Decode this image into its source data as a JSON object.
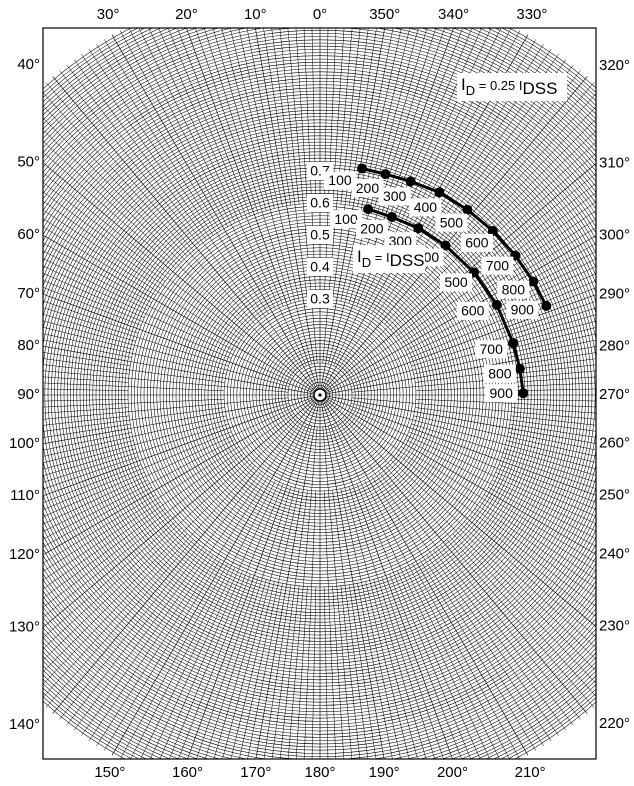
{
  "chart_data": {
    "type": "scatter",
    "description_axes": "polar chart of reflection coefficient magnitude and angle",
    "magnitude_circles": [
      0.3,
      0.4,
      0.5,
      0.6,
      0.7
    ],
    "angle_ticks_top": [
      "30°",
      "20°",
      "10°",
      "0°",
      "350°",
      "340°",
      "330°"
    ],
    "angle_ticks_left": [
      "40°",
      "50°",
      "60°",
      "70°",
      "80°",
      "90°",
      "100°",
      "110°",
      "120°",
      "130°",
      "140°"
    ],
    "angle_ticks_right": [
      "320°",
      "310°",
      "300°",
      "290°",
      "280°",
      "270°",
      "260°",
      "250°",
      "240°",
      "230°",
      "220°"
    ],
    "angle_ticks_bottom": [
      "150°",
      "160°",
      "170°",
      "180°",
      "190°",
      "200°",
      "210°"
    ],
    "grid": true,
    "series": [
      {
        "name_main": "I",
        "name_sub1": "D",
        "name_mid": " = 0.25 I",
        "name_sub2": "DSS",
        "points": [
          {
            "label": "100",
            "mag": 0.72,
            "angle": 349.5
          },
          {
            "label": "200",
            "mag": 0.72,
            "angle": 343.5
          },
          {
            "label": "300",
            "mag": 0.725,
            "angle": 337
          },
          {
            "label": "400",
            "mag": 0.735,
            "angle": 329.5
          },
          {
            "label": "500",
            "mag": 0.74,
            "angle": 321.5
          },
          {
            "label": "600",
            "mag": 0.745,
            "angle": 313.5
          },
          {
            "label": "700",
            "mag": 0.75,
            "angle": 305.5
          },
          {
            "label": "800",
            "mag": 0.755,
            "angle": 298
          },
          {
            "label": "900",
            "mag": 0.76,
            "angle": 291.5
          }
        ]
      },
      {
        "name_main": "I",
        "name_sub1": "D",
        "name_mid": " = I",
        "name_sub2": "DSS",
        "points": [
          {
            "label": "100",
            "mag": 0.6,
            "angle": 345.5
          },
          {
            "label": "200",
            "mag": 0.6,
            "angle": 338
          },
          {
            "label": "300",
            "mag": 0.605,
            "angle": 329.5
          },
          {
            "label": "400",
            "mag": 0.61,
            "angle": 320
          },
          {
            "label": "500",
            "mag": 0.615,
            "angle": 308.5
          },
          {
            "label": "600",
            "mag": 0.62,
            "angle": 297
          },
          {
            "label": "700",
            "mag": 0.625,
            "angle": 285
          },
          {
            "label": "800",
            "mag": 0.63,
            "angle": 277.5
          },
          {
            "label": "900",
            "mag": 0.635,
            "angle": 270.5
          }
        ]
      }
    ]
  }
}
